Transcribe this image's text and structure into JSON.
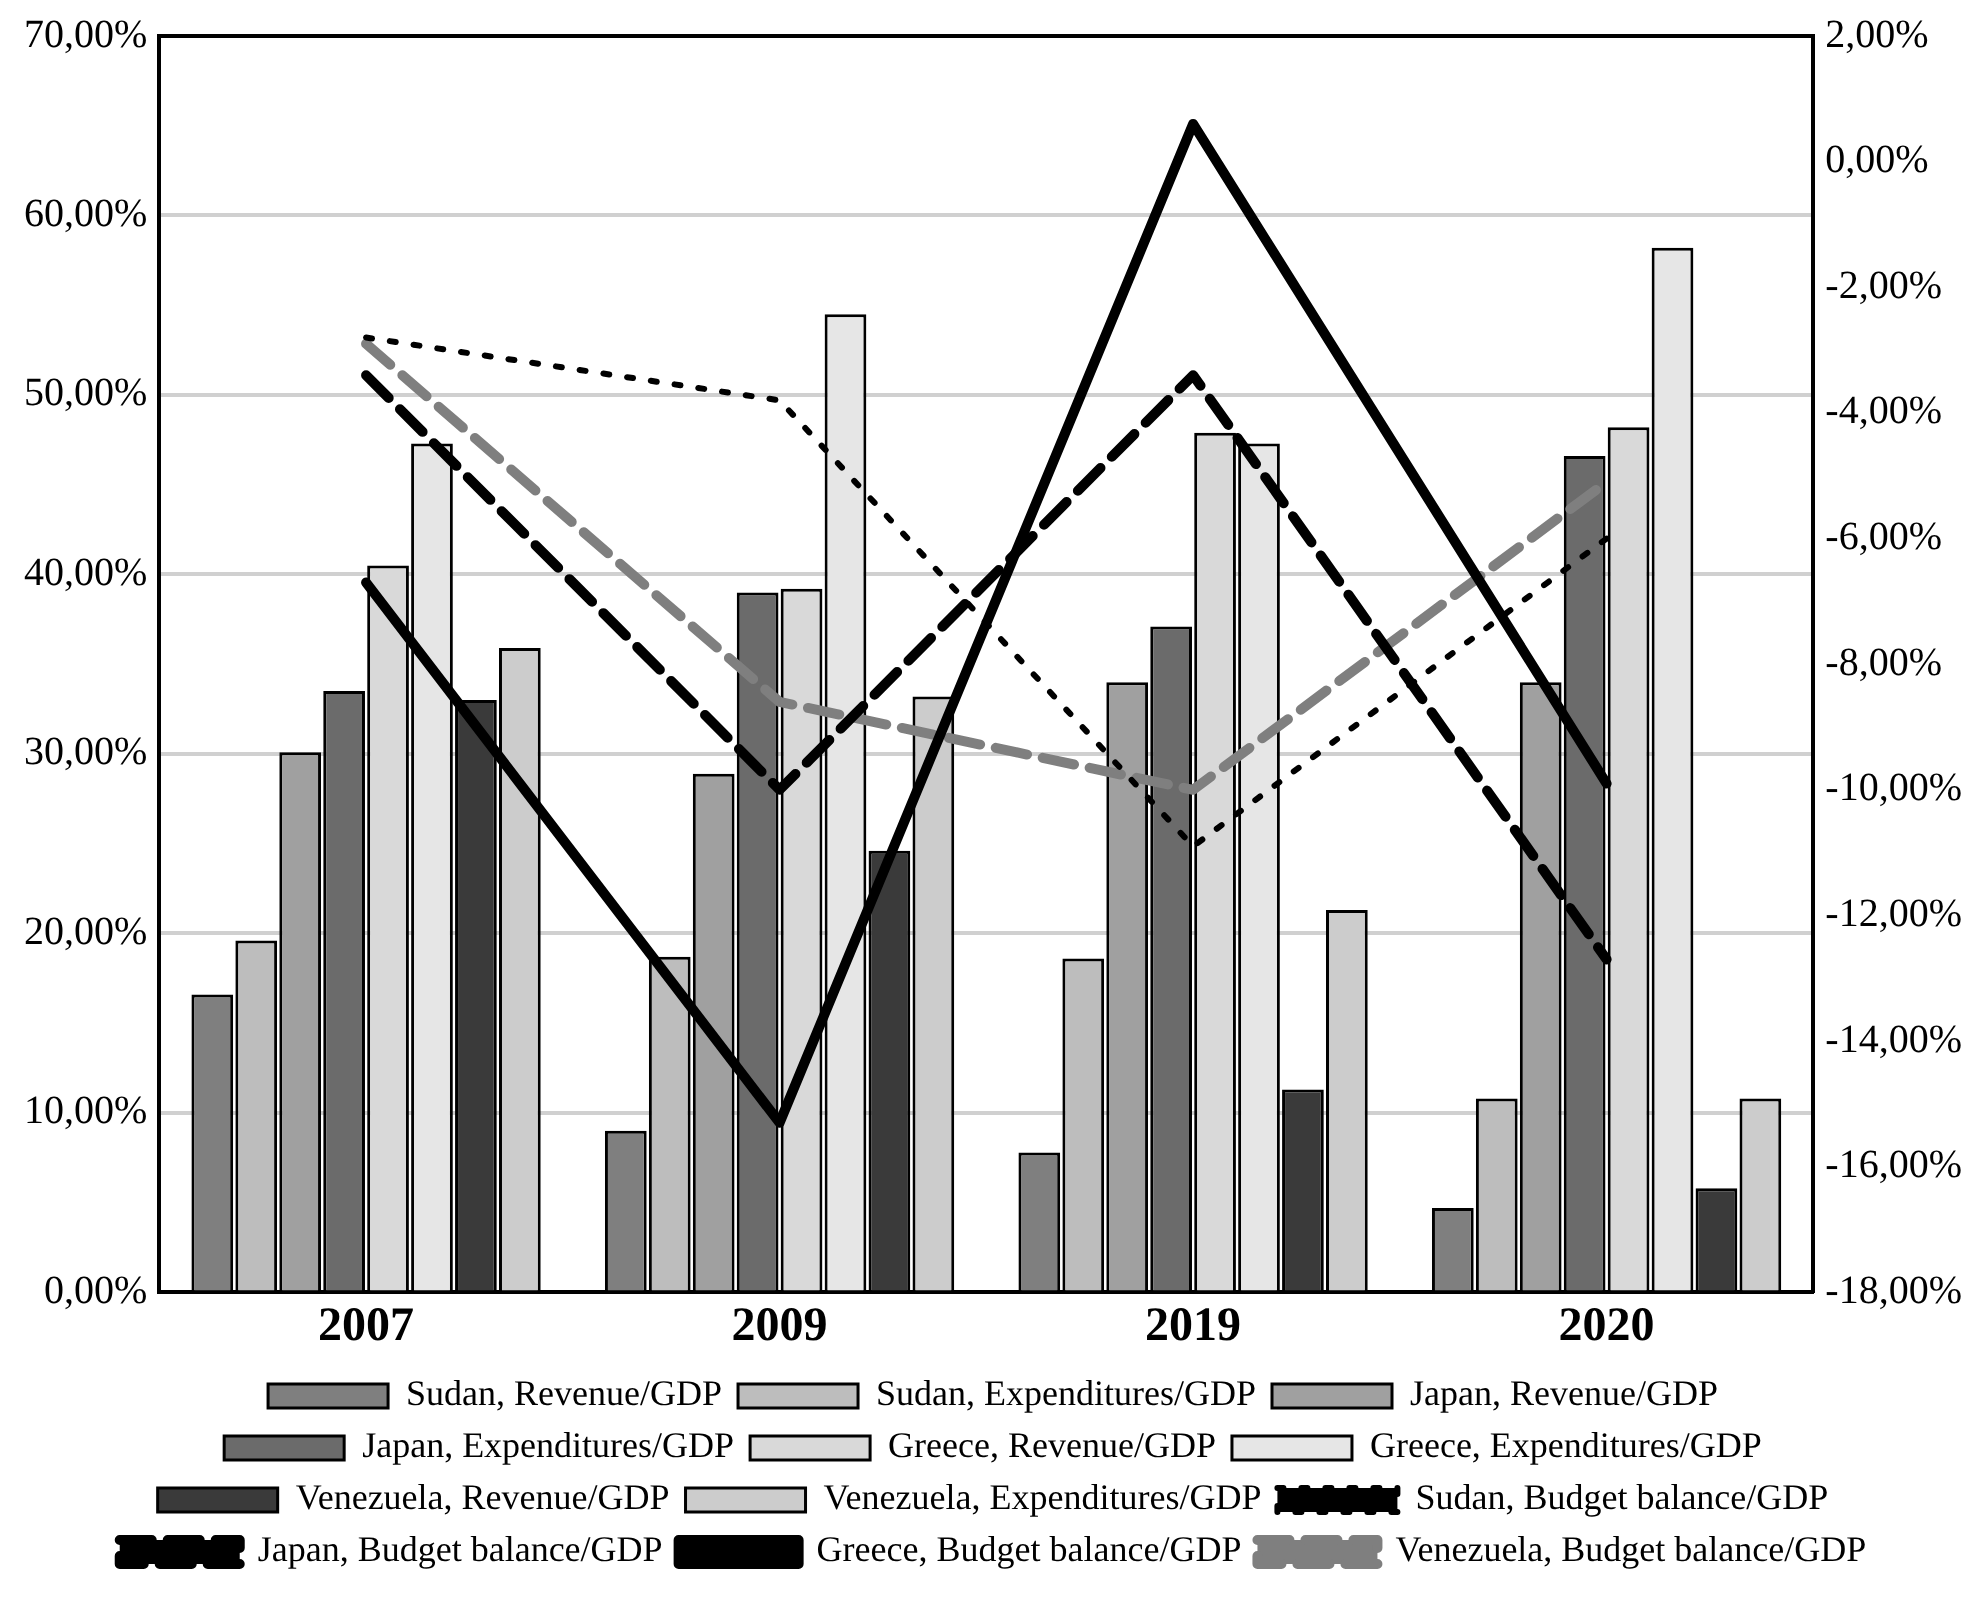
{
  "chart_data": {
    "type": "bar",
    "categories": [
      "2007",
      "2009",
      "2019",
      "2020"
    ],
    "ylim": [
      0,
      70
    ],
    "yticks": [
      {
        "value": 0,
        "label": "0,00%"
      },
      {
        "value": 10,
        "label": "10,00%"
      },
      {
        "value": 20,
        "label": "20,00%"
      },
      {
        "value": 30,
        "label": "30,00%"
      },
      {
        "value": 40,
        "label": "40,00%"
      },
      {
        "value": 50,
        "label": "50,00%"
      },
      {
        "value": 60,
        "label": "60,00%"
      },
      {
        "value": 70,
        "label": "70,00%"
      }
    ],
    "y2lim": [
      -18,
      2
    ],
    "y2ticks": [
      {
        "value": -18,
        "label": "-18,00%"
      },
      {
        "value": -16,
        "label": "-16,00%"
      },
      {
        "value": -14,
        "label": "-14,00%"
      },
      {
        "value": -12,
        "label": "-12,00%"
      },
      {
        "value": -10,
        "label": "-10,00%"
      },
      {
        "value": -8,
        "label": "-8,00%"
      },
      {
        "value": -6,
        "label": "-6,00%"
      },
      {
        "value": -4,
        "label": "-4,00%"
      },
      {
        "value": -2,
        "label": "-2,00%"
      },
      {
        "value": 0,
        "label": "0,00%"
      },
      {
        "value": 2,
        "label": "2,00%"
      }
    ],
    "grid": "y",
    "legend": "bottom",
    "marker": "none",
    "series": [
      {
        "name": "Sudan, Revenue/GDP",
        "color": "#7f7f7f",
        "values": [
          16.6,
          9.0,
          7.8,
          4.7
        ]
      },
      {
        "name": "Sudan, Expenditures/GDP",
        "color": "#bdbdbd",
        "values": [
          19.6,
          18.7,
          18.6,
          10.8
        ]
      },
      {
        "name": "Japan, Revenue/GDP",
        "color": "#a0a0a0",
        "values": [
          30.1,
          28.9,
          34.0,
          34.0
        ]
      },
      {
        "name": "Japan, Expenditures/GDP",
        "color": "#6b6b6b",
        "values": [
          33.5,
          39.0,
          37.1,
          46.6
        ]
      },
      {
        "name": "Greece, Revenue/GDP",
        "color": "#d9d9d9",
        "values": [
          40.5,
          39.2,
          47.9,
          48.2
        ]
      },
      {
        "name": "Greece, Expenditures/GDP",
        "color": "#e6e6e6",
        "values": [
          47.3,
          54.5,
          47.3,
          58.2
        ]
      },
      {
        "name": "Venezuela, Revenue/GDP",
        "color": "#3a3a3a",
        "values": [
          33.0,
          24.6,
          11.3,
          5.8
        ]
      },
      {
        "name": "Venezuela, Expenditures/GDP",
        "color": "#cccccc",
        "values": [
          35.9,
          33.2,
          21.3,
          10.8
        ]
      },
      {
        "name": "Sudan, Budget balance/GDP",
        "type": "line",
        "axis": "y2",
        "line_style": "dotted",
        "color": "#000000",
        "values": [
          -2.8,
          -3.8,
          -10.9,
          -6.0
        ]
      },
      {
        "name": "Japan, Budget balance/GDP",
        "type": "line",
        "axis": "y2",
        "line_style": "dashed",
        "color": "#000000",
        "values": [
          -3.4,
          -10.0,
          -3.4,
          -12.7
        ]
      },
      {
        "name": "Greece, Budget balance/GDP",
        "type": "line",
        "axis": "y2",
        "line_style": "solid",
        "color": "#000000",
        "values": [
          -6.7,
          -15.3,
          0.6,
          -9.9
        ]
      },
      {
        "name": "Venezuela, Budget balance/GDP",
        "type": "line",
        "axis": "y2",
        "line_style": "dashed",
        "color": "#7f7f7f",
        "values": [
          -2.9,
          -8.6,
          -10.0,
          -5.1
        ]
      }
    ]
  }
}
